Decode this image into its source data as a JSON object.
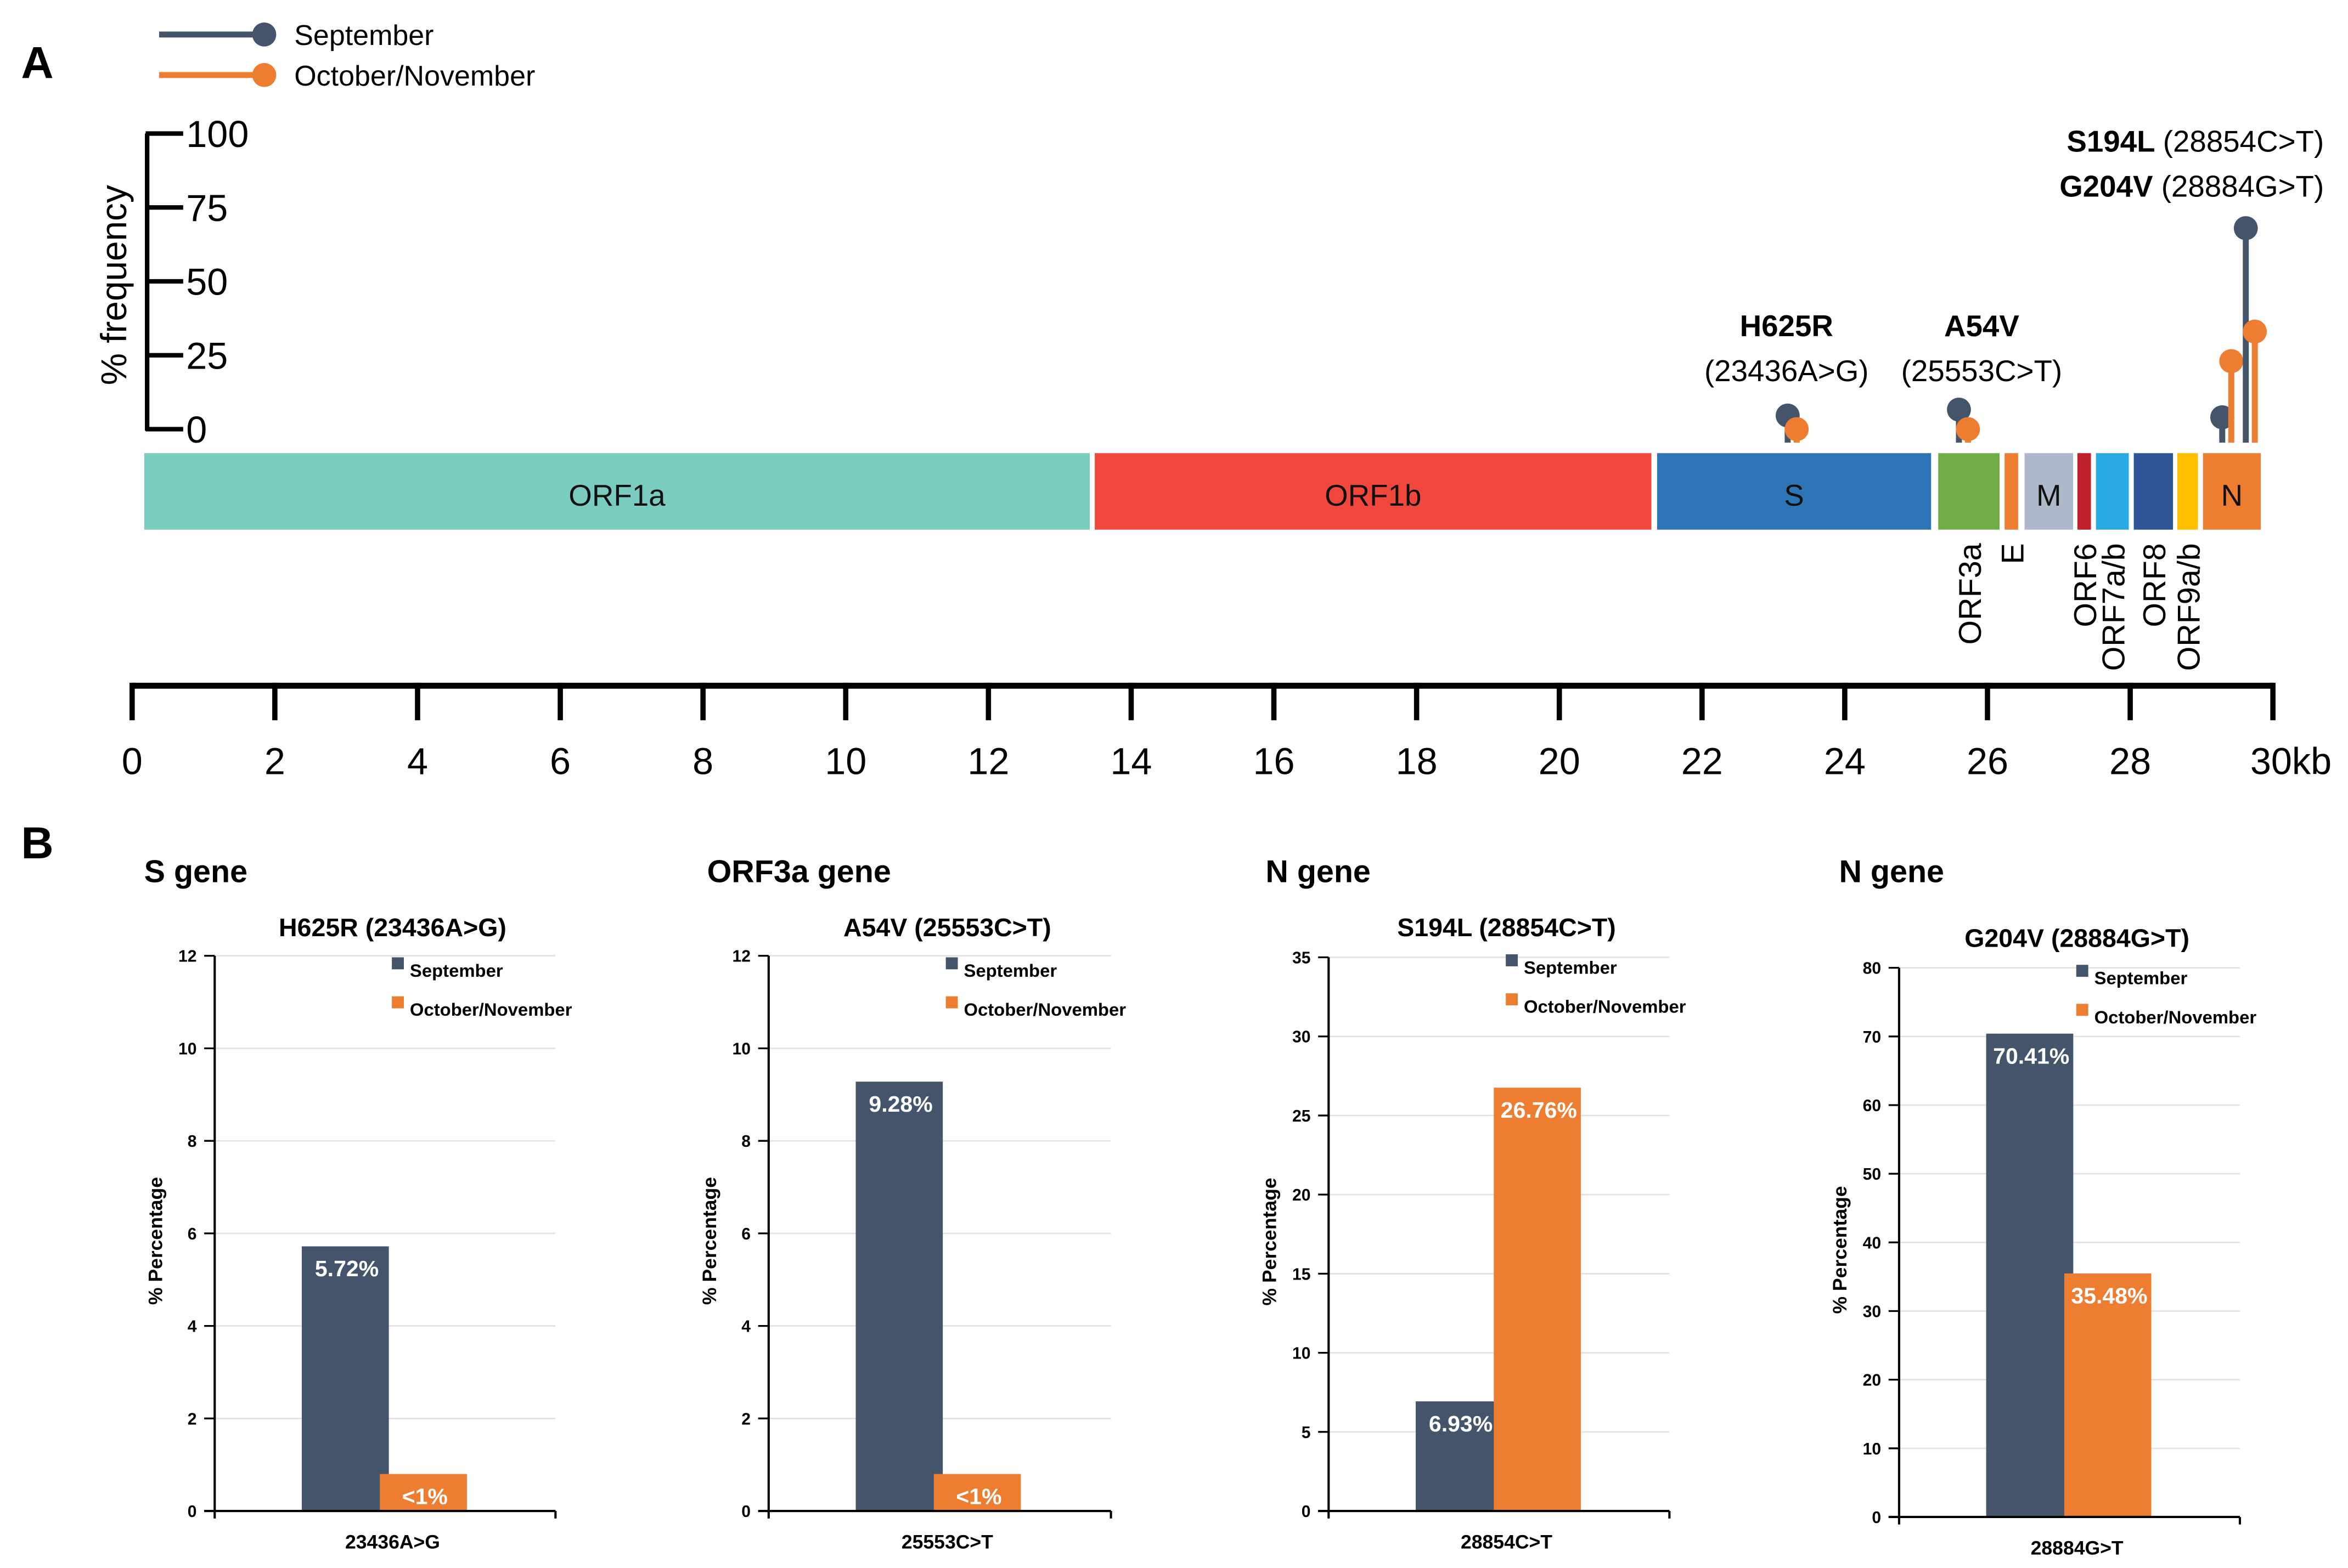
{
  "colors": {
    "september": "#44546a",
    "octnov": "#ed7d31",
    "grid": "#e3e3e3"
  },
  "panel_a": {
    "label": "A",
    "legend": [
      "September",
      "October/November"
    ],
    "freq_axis": {
      "title": "% frequency",
      "ticks": [
        "0",
        "25",
        "50",
        "75",
        "100"
      ],
      "range": [
        0,
        100
      ]
    },
    "genome_axis": {
      "ticks": [
        "0",
        "2",
        "4",
        "6",
        "8",
        "10",
        "12",
        "14",
        "16",
        "18",
        "20",
        "22",
        "24",
        "26",
        "28",
        "30kb"
      ],
      "range_kb": [
        0,
        30
      ]
    },
    "genes": [
      {
        "name": "ORF1a",
        "start": 0.17,
        "end": 13.42,
        "color": "#7accc0",
        "inside": true
      },
      {
        "name": "ORF1b",
        "start": 13.49,
        "end": 21.29,
        "color": "#f0483c",
        "inside": true
      },
      {
        "name": "S",
        "start": 21.37,
        "end": 25.21,
        "color": "#2e75b6",
        "inside": true
      },
      {
        "name": "ORF3a",
        "start": 25.31,
        "end": 26.17,
        "color": "#70ad47",
        "inside": false
      },
      {
        "name": "E",
        "start": 26.24,
        "end": 26.43,
        "color": "#ed7d31",
        "inside": false
      },
      {
        "name": "M",
        "start": 26.52,
        "end": 27.2,
        "color": "#adb9ca",
        "inside": true
      },
      {
        "name": "ORF6",
        "start": 27.26,
        "end": 27.45,
        "color": "#c0202a",
        "inside": false
      },
      {
        "name": "ORF7a/b",
        "start": 27.52,
        "end": 27.98,
        "color": "#29abe2",
        "inside": false
      },
      {
        "name": "ORF8",
        "start": 28.05,
        "end": 28.6,
        "color": "#2f5597",
        "inside": false
      },
      {
        "name": "ORF9a/b",
        "start": 28.66,
        "end": 28.95,
        "color": "#ffc000",
        "inside": false
      },
      {
        "name": "N",
        "start": 29.02,
        "end": 29.83,
        "color": "#ed7d31",
        "inside": true
      }
    ],
    "mutations": [
      {
        "name": "H625R",
        "nt": "(23436A>G)",
        "pos_kb": 23.2,
        "september": 4.6,
        "octnov": 0
      },
      {
        "name": "A54V",
        "nt": "(25553C>T)",
        "pos_kb": 25.6,
        "september": 6.6,
        "octnov": 0
      },
      {
        "name": "S194L",
        "nt": "(28854C>T)",
        "pos_kb": 29.29,
        "september": 4,
        "octnov": 23
      },
      {
        "name": "G204V",
        "nt": "(28884G>T)",
        "pos_kb": 29.62,
        "september": 68,
        "octnov": 33
      }
    ]
  },
  "panel_b": {
    "label": "B"
  },
  "chart_data": [
    {
      "type": "bar",
      "gene_title": "S gene",
      "title": "H625R (23436A>G)",
      "ylabel": "% Percentage",
      "categories": [
        "23436A>G"
      ],
      "ylim": [
        0,
        12
      ],
      "yticks": [
        "0",
        "2",
        "4",
        "6",
        "8",
        "10",
        "12"
      ],
      "series": [
        {
          "name": "September",
          "values": [
            5.72
          ],
          "labels": [
            "5.72%"
          ]
        },
        {
          "name": "October/November",
          "values": [
            0.8
          ],
          "labels": [
            "<1%"
          ]
        }
      ]
    },
    {
      "type": "bar",
      "gene_title": "ORF3a gene",
      "title": "A54V (25553C>T)",
      "ylabel": "% Percentage",
      "categories": [
        "25553C>T"
      ],
      "ylim": [
        0,
        12
      ],
      "yticks": [
        "0",
        "2",
        "4",
        "6",
        "8",
        "10",
        "12"
      ],
      "series": [
        {
          "name": "September",
          "values": [
            9.28
          ],
          "labels": [
            "9.28%"
          ]
        },
        {
          "name": "October/November",
          "values": [
            0.8
          ],
          "labels": [
            "<1%"
          ]
        }
      ]
    },
    {
      "type": "bar",
      "gene_title": "N gene",
      "title": "S194L (28854C>T)",
      "ylabel": "% Percentage",
      "categories": [
        "28854C>T"
      ],
      "ylim": [
        0,
        35
      ],
      "yticks": [
        "0",
        "5",
        "10",
        "15",
        "20",
        "25",
        "30",
        "35"
      ],
      "series": [
        {
          "name": "September",
          "values": [
            6.93
          ],
          "labels": [
            "6.93%"
          ]
        },
        {
          "name": "October/November",
          "values": [
            26.76
          ],
          "labels": [
            "26.76%"
          ]
        }
      ]
    },
    {
      "type": "bar",
      "gene_title": "N gene",
      "title": "G204V (28884G>T)",
      "ylabel": "% Percentage",
      "categories": [
        "28884G>T"
      ],
      "ylim": [
        0,
        80
      ],
      "yticks": [
        "0",
        "10",
        "20",
        "30",
        "40",
        "50",
        "60",
        "70",
        "80"
      ],
      "series": [
        {
          "name": "September",
          "values": [
            70.41
          ],
          "labels": [
            "70.41%"
          ]
        },
        {
          "name": "October/November",
          "values": [
            35.48
          ],
          "labels": [
            "35.48%"
          ]
        }
      ]
    }
  ]
}
